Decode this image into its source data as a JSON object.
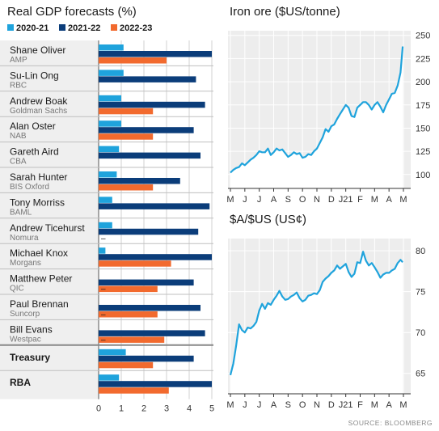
{
  "chart_data": [
    {
      "type": "bar",
      "orientation": "horizontal",
      "title": "Real GDP forecasts (%)",
      "legend": [
        "2020-21",
        "2021-22",
        "2022-23"
      ],
      "legend_position": "top",
      "colors": [
        "#1fa3dc",
        "#0b3d7a",
        "#f26a2e"
      ],
      "xlim": [
        0,
        5
      ],
      "x_ticks": [
        "0",
        "1",
        "2",
        "3",
        "4",
        "5"
      ],
      "forecasters": [
        {
          "name": "Shane Oliver",
          "org": "AMP",
          "values": [
            1.1,
            5.0,
            3.0
          ],
          "missing_label": ""
        },
        {
          "name": "Su-Lin Ong",
          "org": "RBC",
          "values": [
            1.1,
            4.3,
            null
          ],
          "missing_label": ""
        },
        {
          "name": "Andrew Boak",
          "org": "Goldman Sachs",
          "values": [
            1.0,
            4.7,
            2.4
          ],
          "missing_label": ""
        },
        {
          "name": "Alan Oster",
          "org": "NAB",
          "values": [
            1.0,
            4.2,
            2.4
          ],
          "missing_label": ""
        },
        {
          "name": "Gareth Aird",
          "org": "CBA",
          "values": [
            0.9,
            4.5,
            null
          ],
          "missing_label": ""
        },
        {
          "name": "Sarah Hunter",
          "org": "BIS Oxford",
          "values": [
            0.8,
            3.6,
            2.4
          ],
          "missing_label": ""
        },
        {
          "name": "Tony Morriss",
          "org": "BAML",
          "values": [
            0.6,
            4.9,
            null
          ],
          "missing_label": ""
        },
        {
          "name": "Andrew Ticehurst",
          "org": "Nomura",
          "values": [
            0.6,
            4.4,
            null
          ],
          "missing_label": "–"
        },
        {
          "name": "Michael Knox",
          "org": "Morgans",
          "values": [
            0.3,
            5.0,
            3.2
          ],
          "missing_label": ""
        },
        {
          "name": "Matthew Peter",
          "org": "QIC",
          "values": [
            null,
            4.2,
            2.6
          ],
          "missing_label": "–"
        },
        {
          "name": "Paul Brennan",
          "org": "Suncorp",
          "values": [
            null,
            4.5,
            2.6
          ],
          "missing_label": "–"
        },
        {
          "name": "Bill Evans",
          "org": "Westpac",
          "values": [
            null,
            4.7,
            2.9
          ],
          "missing_label": "–"
        },
        {
          "name": "Treasury",
          "org": "",
          "values": [
            1.2,
            4.2,
            2.4
          ],
          "missing_label": "",
          "bold": true
        },
        {
          "name": "RBA",
          "org": "",
          "values": [
            0.9,
            5.0,
            3.1
          ],
          "missing_label": "",
          "bold": true
        }
      ]
    },
    {
      "type": "area",
      "title": "Iron ore ($US/tonne)",
      "ylim": [
        85,
        255
      ],
      "y_ticks": [
        100,
        125,
        150,
        175,
        200,
        225,
        250
      ],
      "x_ticks": [
        "M",
        "J",
        "J",
        "A",
        "S",
        "O",
        "N",
        "D",
        "J21",
        "F",
        "M",
        "A",
        "M"
      ],
      "x": [
        0,
        0.2,
        0.4,
        0.6,
        0.8,
        1,
        1.2,
        1.4,
        1.6,
        1.8,
        2,
        2.2,
        2.4,
        2.6,
        2.8,
        3,
        3.2,
        3.4,
        3.6,
        3.8,
        4,
        4.2,
        4.4,
        4.6,
        4.8,
        5,
        5.2,
        5.4,
        5.6,
        5.8,
        6,
        6.2,
        6.4,
        6.6,
        6.8,
        7,
        7.2,
        7.4,
        7.6,
        7.8,
        8,
        8.2,
        8.4,
        8.6,
        8.8,
        9,
        9.2,
        9.4,
        9.6,
        9.8,
        10,
        10.2,
        10.4,
        10.6,
        10.8,
        11,
        11.2,
        11.4,
        11.6,
        11.8,
        11.95
      ],
      "y": [
        102,
        105,
        107,
        108,
        112,
        110,
        113,
        116,
        118,
        121,
        125,
        124,
        124,
        128,
        121,
        124,
        128,
        126,
        127,
        123,
        119,
        121,
        124,
        122,
        123,
        118,
        119,
        122,
        121,
        125,
        128,
        134,
        140,
        149,
        146,
        152,
        154,
        160,
        165,
        170,
        175,
        172,
        163,
        162,
        172,
        175,
        178,
        178,
        175,
        170,
        175,
        178,
        173,
        167,
        175,
        181,
        187,
        188,
        196,
        210,
        238
      ]
    },
    {
      "type": "area",
      "title": "$A/$US (US¢)",
      "ylim": [
        62.5,
        81.5
      ],
      "y_ticks": [
        65,
        70,
        75,
        80
      ],
      "x_ticks": [
        "M",
        "J",
        "J",
        "A",
        "S",
        "O",
        "N",
        "D",
        "J21",
        "F",
        "M",
        "A",
        "M"
      ],
      "x": [
        0,
        0.2,
        0.4,
        0.6,
        0.8,
        1,
        1.2,
        1.4,
        1.6,
        1.8,
        2,
        2.2,
        2.4,
        2.6,
        2.8,
        3,
        3.2,
        3.4,
        3.6,
        3.8,
        4,
        4.2,
        4.4,
        4.6,
        4.8,
        5,
        5.2,
        5.4,
        5.6,
        5.8,
        6,
        6.2,
        6.4,
        6.6,
        6.8,
        7,
        7.2,
        7.4,
        7.6,
        7.8,
        8,
        8.2,
        8.4,
        8.6,
        8.8,
        9,
        9.2,
        9.4,
        9.6,
        9.8,
        10,
        10.2,
        10.4,
        10.6,
        10.8,
        11,
        11.2,
        11.4,
        11.6,
        11.8,
        11.95
      ],
      "y": [
        64.8,
        66.2,
        68.4,
        71,
        70.3,
        70,
        70.6,
        70.5,
        70.8,
        71.3,
        72.7,
        73.5,
        72.9,
        73.6,
        73.4,
        74,
        74.5,
        75.1,
        74.4,
        74,
        74.1,
        74.4,
        74.6,
        74.9,
        74.2,
        73.8,
        74,
        74.5,
        74.6,
        74.8,
        74.7,
        75.2,
        76.2,
        76.6,
        76.9,
        77.3,
        77.6,
        78.2,
        77.8,
        78.1,
        78.4,
        77.4,
        76.8,
        77.2,
        78.6,
        78.5,
        79.9,
        78.8,
        78.2,
        78.5,
        78.0,
        77.4,
        76.7,
        77.1,
        77.3,
        77.3,
        77.6,
        77.8,
        78.5,
        78.9,
        78.6
      ]
    }
  ],
  "source": "SOURCE: BLOOMBERG"
}
